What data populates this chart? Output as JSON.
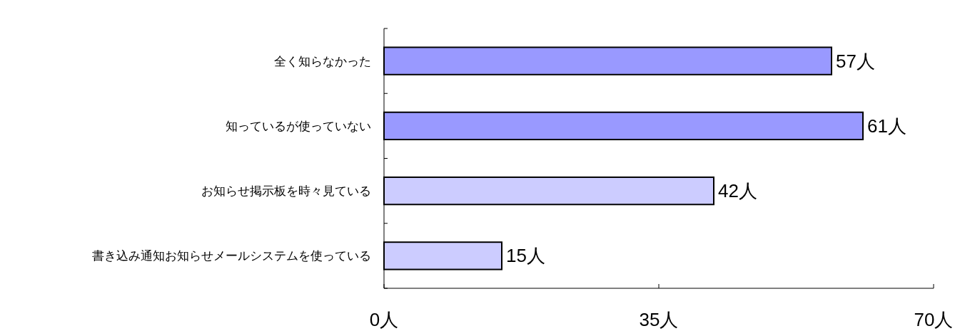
{
  "chart_data": {
    "type": "bar",
    "orientation": "horizontal",
    "categories": [
      "全く知らなかった",
      "知っているが使っていない",
      "お知らせ掲示板を時々見ている",
      "書き込み通知お知らせメールシステムを使っている"
    ],
    "values": [
      57,
      61,
      42,
      15
    ],
    "colors": [
      "#9999ff",
      "#9999ff",
      "#ccccff",
      "#ccccff"
    ],
    "value_labels": [
      "57人",
      "61人",
      "42人",
      "15人"
    ],
    "xlim": [
      0,
      70
    ],
    "xticks": [
      {
        "value": 0,
        "label": "0人"
      },
      {
        "value": 35,
        "label": "35人"
      },
      {
        "value": 70,
        "label": "70人"
      }
    ],
    "grid": false
  }
}
